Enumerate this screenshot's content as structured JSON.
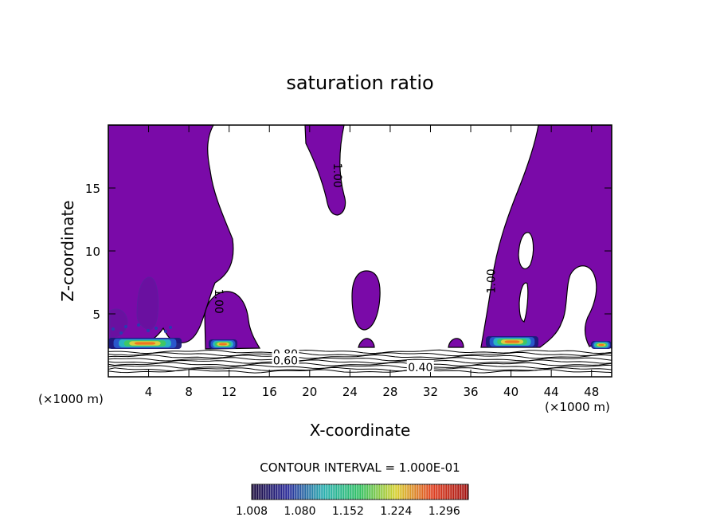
{
  "chart_data": {
    "type": "contour",
    "title": "saturation ratio",
    "xlabel": "X-coordinate",
    "ylabel": "Z-coordinate",
    "x_unit": "(×1000 m)",
    "x_unit_right": "(×1000 m)",
    "xlim": [
      0,
      50
    ],
    "ylim": [
      0,
      20
    ],
    "x_ticks": [
      4,
      8,
      12,
      16,
      20,
      24,
      28,
      32,
      36,
      40,
      44,
      48
    ],
    "y_ticks": [
      5,
      10,
      15
    ],
    "contour_interval_text": "CONTOUR INTERVAL = 1.000E-01",
    "colorbar": {
      "labels": [
        "1.008",
        "1.080",
        "1.152",
        "1.224",
        "1.296"
      ],
      "min": 1.008,
      "max": 1.332,
      "colors": [
        "#1a0a3a",
        "#2a2a9a",
        "#2ab0b0",
        "#30c060",
        "#d8d030",
        "#e04020",
        "#a01010"
      ]
    },
    "contour_labels": [
      {
        "text": "1.00",
        "x": 22.8,
        "z": 16.0,
        "angle": 90
      },
      {
        "text": "1.00",
        "x": 11.0,
        "z": 6.0,
        "angle": 90
      },
      {
        "text": "1.00",
        "x": 38.0,
        "z": 7.6,
        "angle": -90
      },
      {
        "text": "0.80",
        "x": 17.6,
        "z": 1.85,
        "angle": 0
      },
      {
        "text": "0.60",
        "x": 17.6,
        "z": 1.3,
        "angle": 0
      },
      {
        "text": "0.40",
        "x": 31.0,
        "z": 0.75,
        "angle": 0
      }
    ],
    "supersaturated_fill": "#7a0aa8"
  }
}
